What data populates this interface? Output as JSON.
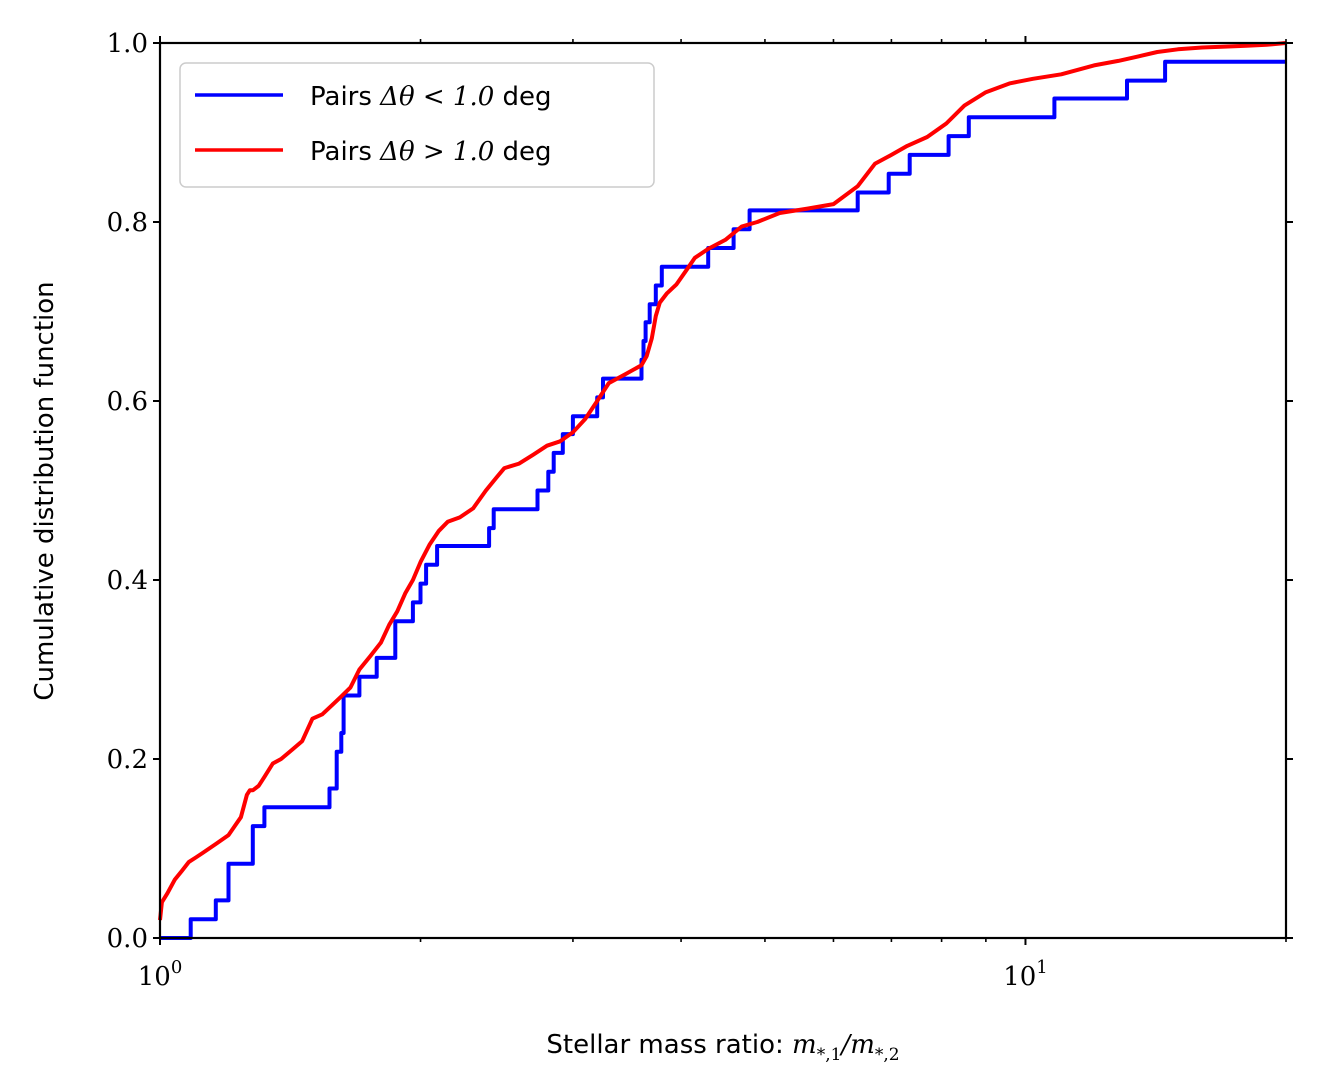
{
  "chart_data": {
    "type": "line",
    "title": "",
    "xlabel_text": "Stellar mass ratio: ",
    "xlabel_math": {
      "m1": "m",
      "sub1": "*,1",
      "slash": "/",
      "m2": "m",
      "sub2": "*,2"
    },
    "ylabel": "Cumulative distribution function",
    "xscale": "log",
    "xlim": [
      1,
      20
    ],
    "ylim": [
      0,
      1.0
    ],
    "y_ticks": [
      0.0,
      0.2,
      0.4,
      0.6,
      0.8,
      1.0
    ],
    "y_tick_labels": [
      "0.0",
      "0.2",
      "0.4",
      "0.6",
      "0.8",
      "1.0"
    ],
    "x_major_ticks": [
      1,
      10
    ],
    "x_tick_labels": [
      {
        "base": "10",
        "exp": "0"
      },
      {
        "base": "10",
        "exp": "1"
      }
    ],
    "x_minor_ticks": [
      2,
      3,
      4,
      5,
      6,
      7,
      8,
      9,
      20
    ],
    "legend_position": "upper-left",
    "series": [
      {
        "name": "Pairs Δθ < 1.0 deg",
        "legend_prefix": "Pairs ",
        "legend_math": "Δθ < 1.0",
        "legend_suffix": " deg",
        "color": "#0000ff",
        "x": [
          1.0,
          1.045,
          1.045,
          1.065,
          1.065,
          1.085,
          1.085,
          1.16,
          1.16,
          1.175,
          1.175,
          1.2,
          1.2,
          1.28,
          1.28,
          1.32,
          1.32,
          1.4,
          1.4,
          1.57,
          1.57,
          1.6,
          1.6,
          1.62,
          1.62,
          1.63,
          1.63,
          1.7,
          1.7,
          1.74,
          1.74,
          1.78,
          1.78,
          1.83,
          1.83,
          1.87,
          1.87,
          1.93,
          1.93,
          1.96,
          1.96,
          2.0,
          2.0,
          2.03,
          2.03,
          2.05,
          2.05,
          2.09,
          2.09,
          2.12,
          2.12,
          2.4,
          2.4,
          2.43,
          2.43,
          2.68,
          2.68,
          2.73,
          2.73,
          2.81,
          2.81,
          2.85,
          2.85,
          2.92,
          2.92,
          3.0,
          3.0,
          3.1,
          3.1,
          3.2,
          3.2,
          3.25,
          3.25,
          3.6,
          3.6,
          3.62,
          3.62,
          3.64,
          3.64,
          3.68,
          3.68,
          3.74,
          3.74,
          3.8,
          3.8,
          3.83,
          3.83,
          3.86,
          3.86,
          3.9,
          3.9,
          4.3,
          4.3,
          4.6,
          4.6,
          4.8,
          4.8,
          6.4,
          6.4,
          6.45,
          6.45,
          6.95,
          6.95,
          7.35,
          7.35,
          8.15,
          8.15,
          8.6,
          8.6,
          8.9,
          8.9,
          10.8,
          10.8,
          13.1,
          13.1,
          14.5,
          14.5,
          20.0
        ],
        "y": [
          0.0,
          0.0,
          0.0,
          0.0,
          0.0,
          0.0,
          0.021,
          0.021,
          0.042,
          0.042,
          0.042,
          0.042,
          0.083,
          0.083,
          0.125,
          0.125,
          0.146,
          0.146,
          0.146,
          0.146,
          0.167,
          0.167,
          0.208,
          0.208,
          0.229,
          0.229,
          0.271,
          0.271,
          0.292,
          0.292,
          0.292,
          0.292,
          0.313,
          0.313,
          0.313,
          0.313,
          0.354,
          0.354,
          0.354,
          0.354,
          0.375,
          0.375,
          0.396,
          0.396,
          0.417,
          0.417,
          0.417,
          0.417,
          0.438,
          0.438,
          0.438,
          0.438,
          0.458,
          0.458,
          0.479,
          0.479,
          0.479,
          0.479,
          0.5,
          0.5,
          0.521,
          0.521,
          0.542,
          0.542,
          0.563,
          0.563,
          0.583,
          0.583,
          0.583,
          0.583,
          0.604,
          0.604,
          0.625,
          0.625,
          0.646,
          0.646,
          0.667,
          0.667,
          0.688,
          0.688,
          0.708,
          0.708,
          0.729,
          0.729,
          0.75,
          0.75,
          0.75,
          0.75,
          0.75,
          0.75,
          0.75,
          0.75,
          0.771,
          0.771,
          0.792,
          0.792,
          0.813,
          0.813,
          0.833,
          0.833,
          0.833,
          0.833,
          0.854,
          0.854,
          0.875,
          0.875,
          0.896,
          0.896,
          0.917,
          0.917,
          0.917,
          0.917,
          0.938,
          0.938,
          0.958,
          0.958,
          0.979,
          0.979
        ]
      },
      {
        "name": "Pairs Δθ > 1.0 deg",
        "legend_prefix": "Pairs ",
        "legend_math": "Δθ > 1.0",
        "legend_suffix": " deg",
        "color": "#ff0000",
        "x": [
          1.0,
          1.005,
          1.02,
          1.04,
          1.06,
          1.08,
          1.1,
          1.12,
          1.14,
          1.16,
          1.2,
          1.22,
          1.24,
          1.26,
          1.27,
          1.28,
          1.3,
          1.32,
          1.35,
          1.38,
          1.42,
          1.46,
          1.5,
          1.54,
          1.58,
          1.62,
          1.66,
          1.7,
          1.75,
          1.8,
          1.84,
          1.88,
          1.92,
          1.96,
          2.0,
          2.05,
          2.1,
          2.15,
          2.22,
          2.3,
          2.38,
          2.45,
          2.5,
          2.6,
          2.7,
          2.8,
          2.9,
          3.0,
          3.1,
          3.2,
          3.3,
          3.45,
          3.6,
          3.65,
          3.7,
          3.74,
          3.78,
          3.85,
          3.95,
          4.05,
          4.15,
          4.3,
          4.5,
          4.7,
          4.9,
          5.2,
          5.6,
          6.0,
          6.4,
          6.7,
          7.0,
          7.3,
          7.7,
          8.1,
          8.5,
          9.0,
          9.6,
          10.2,
          11.0,
          12.0,
          12.8,
          13.5,
          14.2,
          15.0,
          16.0,
          17.0,
          18.0,
          19.0,
          20.0
        ],
        "y": [
          0.02,
          0.04,
          0.05,
          0.065,
          0.075,
          0.085,
          0.09,
          0.095,
          0.1,
          0.105,
          0.115,
          0.125,
          0.135,
          0.16,
          0.165,
          0.165,
          0.17,
          0.18,
          0.195,
          0.2,
          0.21,
          0.22,
          0.245,
          0.25,
          0.26,
          0.27,
          0.28,
          0.3,
          0.315,
          0.33,
          0.35,
          0.365,
          0.385,
          0.4,
          0.42,
          0.44,
          0.455,
          0.465,
          0.47,
          0.48,
          0.5,
          0.515,
          0.525,
          0.53,
          0.54,
          0.55,
          0.555,
          0.565,
          0.58,
          0.6,
          0.62,
          0.63,
          0.64,
          0.65,
          0.67,
          0.695,
          0.71,
          0.72,
          0.73,
          0.745,
          0.76,
          0.77,
          0.78,
          0.795,
          0.8,
          0.81,
          0.815,
          0.82,
          0.84,
          0.865,
          0.875,
          0.885,
          0.895,
          0.91,
          0.93,
          0.945,
          0.955,
          0.96,
          0.965,
          0.975,
          0.98,
          0.985,
          0.99,
          0.993,
          0.995,
          0.996,
          0.997,
          0.998,
          1.0
        ]
      }
    ]
  }
}
